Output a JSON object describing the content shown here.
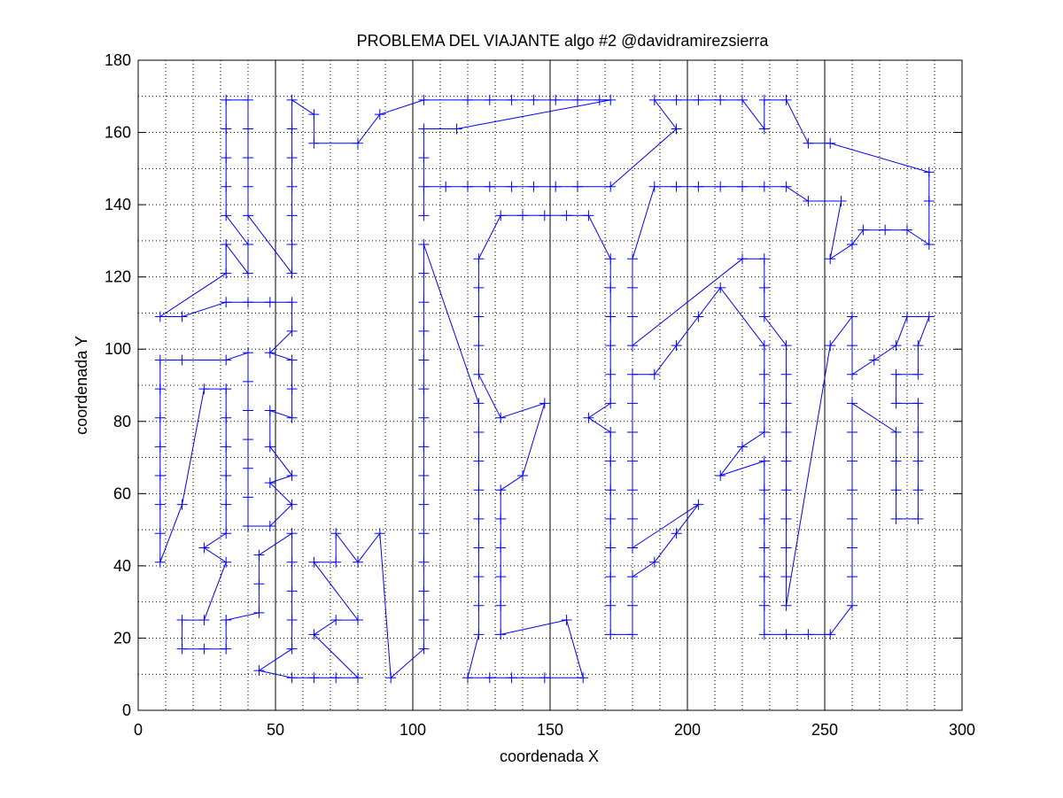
{
  "chart_data": {
    "type": "line",
    "title": "PROBLEMA DEL VIAJANTE algo #2 @davidramirezsierra",
    "xlabel": "coordenada X",
    "ylabel": "coordenada Y",
    "xlim": [
      0,
      300
    ],
    "ylim": [
      0,
      180
    ],
    "x_ticks": [
      0,
      50,
      100,
      150,
      200,
      250,
      300
    ],
    "y_ticks": [
      0,
      20,
      40,
      60,
      80,
      100,
      120,
      140,
      160,
      180
    ],
    "grid": "dotted",
    "x_minor_step": 10,
    "y_minor_step": 10,
    "vertical_lines": [
      50,
      100,
      150,
      200,
      250
    ],
    "colors": {
      "route": "#0000ff",
      "axes": "#000000",
      "grid": "#000000"
    },
    "marker": "plus",
    "series": [
      {
        "points": [
          [
            8,
            41
          ],
          [
            8,
            49
          ],
          [
            8,
            57
          ],
          [
            8,
            65
          ],
          [
            8,
            73
          ],
          [
            8,
            81
          ],
          [
            8,
            89
          ],
          [
            8,
            97
          ],
          [
            16,
            97
          ],
          [
            32,
            97
          ],
          [
            40,
            99
          ],
          [
            40,
            91
          ],
          [
            40,
            83
          ],
          [
            40,
            75
          ],
          [
            40,
            67
          ],
          [
            40,
            59
          ],
          [
            40,
            51
          ],
          [
            48,
            51
          ],
          [
            56,
            57
          ],
          [
            48,
            63
          ],
          [
            56,
            65
          ],
          [
            48,
            73
          ],
          [
            48,
            83
          ],
          [
            56,
            81
          ],
          [
            56,
            89
          ],
          [
            56,
            97
          ],
          [
            48,
            99
          ],
          [
            56,
            105
          ],
          [
            56,
            113
          ],
          [
            48,
            113
          ],
          [
            40,
            113
          ],
          [
            32,
            113
          ],
          [
            16,
            109
          ],
          [
            8,
            109
          ],
          [
            32,
            121
          ],
          [
            32,
            129
          ],
          [
            40,
            121
          ],
          [
            40,
            129
          ],
          [
            32,
            137
          ],
          [
            32,
            145
          ],
          [
            32,
            153
          ],
          [
            32,
            161
          ],
          [
            32,
            169
          ],
          [
            40,
            169
          ],
          [
            40,
            161
          ],
          [
            40,
            153
          ],
          [
            40,
            145
          ],
          [
            40,
            137
          ],
          [
            56,
            121
          ],
          [
            56,
            129
          ],
          [
            56,
            137
          ],
          [
            56,
            145
          ],
          [
            56,
            153
          ],
          [
            56,
            161
          ],
          [
            56,
            169
          ],
          [
            64,
            165
          ],
          [
            64,
            157
          ],
          [
            80,
            157
          ],
          [
            88,
            165
          ],
          [
            104,
            169
          ],
          [
            120,
            169
          ],
          [
            128,
            169
          ],
          [
            136,
            169
          ],
          [
            144,
            169
          ],
          [
            152,
            169
          ],
          [
            160,
            169
          ],
          [
            168,
            169
          ],
          [
            172,
            169
          ],
          [
            116,
            161
          ],
          [
            104,
            161
          ],
          [
            104,
            153
          ],
          [
            104,
            145
          ],
          [
            104,
            137
          ],
          [
            104,
            145
          ],
          [
            112,
            145
          ],
          [
            120,
            145
          ],
          [
            128,
            145
          ],
          [
            136,
            145
          ],
          [
            144,
            145
          ],
          [
            152,
            145
          ],
          [
            160,
            145
          ],
          [
            172,
            145
          ],
          [
            196,
            161
          ],
          [
            188,
            169
          ],
          [
            196,
            169
          ],
          [
            204,
            169
          ],
          [
            212,
            169
          ],
          [
            220,
            169
          ],
          [
            228,
            161
          ],
          [
            228,
            169
          ],
          [
            236,
            169
          ],
          [
            244,
            157
          ],
          [
            252,
            157
          ],
          [
            288,
            149
          ],
          [
            288,
            141
          ],
          [
            288,
            129
          ],
          [
            280,
            133
          ],
          [
            272,
            133
          ],
          [
            264,
            133
          ],
          [
            260,
            129
          ],
          [
            252,
            125
          ],
          [
            256,
            141
          ],
          [
            244,
            141
          ],
          [
            236,
            145
          ],
          [
            228,
            145
          ],
          [
            220,
            145
          ],
          [
            212,
            145
          ],
          [
            204,
            145
          ],
          [
            196,
            145
          ],
          [
            188,
            145
          ],
          [
            180,
            125
          ],
          [
            180,
            117
          ],
          [
            180,
            109
          ],
          [
            180,
            101
          ],
          [
            220,
            125
          ],
          [
            228,
            125
          ],
          [
            228,
            117
          ],
          [
            228,
            109
          ],
          [
            236,
            101
          ],
          [
            236,
            93
          ],
          [
            236,
            85
          ],
          [
            236,
            77
          ],
          [
            236,
            69
          ],
          [
            236,
            61
          ],
          [
            236,
            53
          ],
          [
            236,
            45
          ],
          [
            236,
            37
          ],
          [
            236,
            29
          ],
          [
            252,
            101
          ],
          [
            260,
            109
          ],
          [
            260,
            101
          ],
          [
            260,
            93
          ],
          [
            268,
            97
          ],
          [
            276,
            101
          ],
          [
            280,
            109
          ],
          [
            288,
            109
          ],
          [
            284,
            101
          ],
          [
            284,
            93
          ],
          [
            276,
            93
          ],
          [
            276,
            85
          ],
          [
            284,
            85
          ],
          [
            284,
            77
          ],
          [
            284,
            69
          ],
          [
            284,
            61
          ],
          [
            284,
            53
          ],
          [
            276,
            53
          ],
          [
            276,
            61
          ],
          [
            276,
            69
          ],
          [
            276,
            77
          ],
          [
            260,
            85
          ],
          [
            260,
            77
          ],
          [
            260,
            69
          ],
          [
            260,
            61
          ],
          [
            260,
            53
          ],
          [
            260,
            45
          ],
          [
            260,
            37
          ],
          [
            260,
            29
          ],
          [
            252,
            21
          ],
          [
            244,
            21
          ],
          [
            236,
            21
          ],
          [
            228,
            21
          ],
          [
            228,
            29
          ],
          [
            228,
            37
          ],
          [
            228,
            45
          ],
          [
            228,
            53
          ],
          [
            228,
            61
          ],
          [
            228,
            69
          ],
          [
            212,
            65
          ],
          [
            220,
            73
          ],
          [
            228,
            77
          ],
          [
            228,
            85
          ],
          [
            228,
            93
          ],
          [
            228,
            101
          ],
          [
            212,
            117
          ],
          [
            204,
            109
          ],
          [
            196,
            101
          ],
          [
            188,
            93
          ],
          [
            180,
            93
          ],
          [
            180,
            85
          ],
          [
            180,
            77
          ],
          [
            180,
            69
          ],
          [
            180,
            61
          ],
          [
            180,
            53
          ],
          [
            180,
            45
          ],
          [
            204,
            57
          ],
          [
            196,
            49
          ],
          [
            188,
            41
          ],
          [
            180,
            37
          ],
          [
            180,
            29
          ],
          [
            180,
            21
          ],
          [
            172,
            21
          ],
          [
            172,
            29
          ],
          [
            172,
            37
          ],
          [
            172,
            45
          ],
          [
            172,
            53
          ],
          [
            172,
            61
          ],
          [
            172,
            69
          ],
          [
            172,
            77
          ],
          [
            164,
            81
          ],
          [
            172,
            85
          ],
          [
            172,
            93
          ],
          [
            172,
            101
          ],
          [
            172,
            109
          ],
          [
            172,
            117
          ],
          [
            172,
            125
          ],
          [
            164,
            137
          ],
          [
            156,
            137
          ],
          [
            148,
            137
          ],
          [
            140,
            137
          ],
          [
            132,
            137
          ],
          [
            124,
            125
          ],
          [
            124,
            117
          ],
          [
            124,
            109
          ],
          [
            124,
            101
          ],
          [
            124,
            93
          ],
          [
            132,
            81
          ],
          [
            148,
            85
          ],
          [
            140,
            65
          ],
          [
            132,
            61
          ],
          [
            132,
            53
          ],
          [
            132,
            45
          ],
          [
            132,
            37
          ],
          [
            132,
            29
          ],
          [
            132,
            21
          ],
          [
            156,
            25
          ],
          [
            162,
            9
          ],
          [
            148,
            9
          ],
          [
            136,
            9
          ],
          [
            128,
            9
          ],
          [
            120,
            9
          ],
          [
            124,
            21
          ],
          [
            124,
            29
          ],
          [
            124,
            37
          ],
          [
            124,
            45
          ],
          [
            124,
            53
          ],
          [
            124,
            61
          ],
          [
            124,
            69
          ],
          [
            124,
            77
          ],
          [
            124,
            85
          ],
          [
            104,
            129
          ],
          [
            104,
            121
          ],
          [
            104,
            113
          ],
          [
            104,
            105
          ],
          [
            104,
            97
          ],
          [
            104,
            89
          ],
          [
            104,
            81
          ],
          [
            104,
            73
          ],
          [
            104,
            65
          ],
          [
            104,
            57
          ],
          [
            104,
            49
          ],
          [
            104,
            41
          ],
          [
            104,
            33
          ],
          [
            104,
            25
          ],
          [
            104,
            17
          ],
          [
            92,
            9
          ],
          [
            88,
            49
          ],
          [
            80,
            41
          ],
          [
            72,
            49
          ],
          [
            72,
            41
          ],
          [
            64,
            41
          ],
          [
            80,
            25
          ],
          [
            72,
            25
          ],
          [
            64,
            21
          ],
          [
            80,
            9
          ],
          [
            72,
            9
          ],
          [
            64,
            9
          ],
          [
            56,
            9
          ],
          [
            44,
            11
          ],
          [
            56,
            17
          ],
          [
            56,
            25
          ],
          [
            56,
            33
          ],
          [
            56,
            41
          ],
          [
            56,
            49
          ],
          [
            44,
            43
          ],
          [
            44,
            35
          ],
          [
            44,
            27
          ],
          [
            32,
            25
          ],
          [
            32,
            17
          ],
          [
            24,
            17
          ],
          [
            16,
            17
          ],
          [
            16,
            25
          ],
          [
            24,
            25
          ],
          [
            32,
            41
          ],
          [
            24,
            45
          ],
          [
            32,
            49
          ],
          [
            32,
            57
          ],
          [
            32,
            65
          ],
          [
            32,
            73
          ],
          [
            32,
            81
          ],
          [
            32,
            89
          ],
          [
            24,
            89
          ],
          [
            16,
            57
          ],
          [
            8,
            41
          ]
        ]
      }
    ]
  }
}
